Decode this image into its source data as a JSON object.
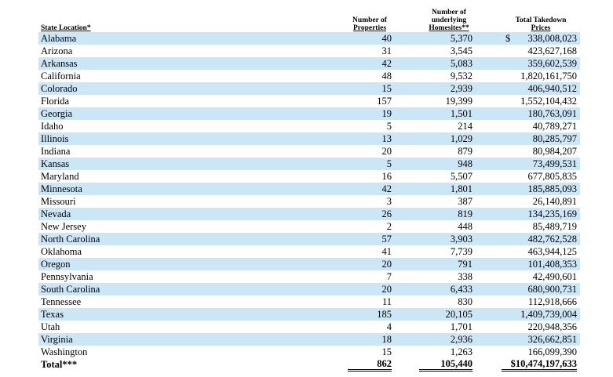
{
  "headers": {
    "state": "State Location*",
    "properties": [
      "Number of",
      "Properties"
    ],
    "homesites": [
      "Number of",
      "underlying",
      "Homesites**"
    ],
    "prices": [
      "Total Takedown",
      "Prices"
    ]
  },
  "currency_symbol": "$",
  "rows": [
    {
      "state": "Alabama",
      "properties": "40",
      "homesites": "5,370",
      "prices": "338,008,023"
    },
    {
      "state": "Arizona",
      "properties": "31",
      "homesites": "3,545",
      "prices": "423,627,168"
    },
    {
      "state": "Arkansas",
      "properties": "42",
      "homesites": "5,083",
      "prices": "359,602,539"
    },
    {
      "state": "California",
      "properties": "48",
      "homesites": "9,532",
      "prices": "1,820,161,750"
    },
    {
      "state": "Colorado",
      "properties": "15",
      "homesites": "2,939",
      "prices": "406,940,512"
    },
    {
      "state": "Florida",
      "properties": "157",
      "homesites": "19,399",
      "prices": "1,552,104,432"
    },
    {
      "state": "Georgia",
      "properties": "19",
      "homesites": "1,501",
      "prices": "180,763,091"
    },
    {
      "state": "Idaho",
      "properties": "5",
      "homesites": "214",
      "prices": "40,789,271"
    },
    {
      "state": "Illinois",
      "properties": "13",
      "homesites": "1,029",
      "prices": "80,285,797"
    },
    {
      "state": "Indiana",
      "properties": "20",
      "homesites": "879",
      "prices": "80,984,207"
    },
    {
      "state": "Kansas",
      "properties": "5",
      "homesites": "948",
      "prices": "73,499,531"
    },
    {
      "state": "Maryland",
      "properties": "16",
      "homesites": "5,507",
      "prices": "677,805,835"
    },
    {
      "state": "Minnesota",
      "properties": "42",
      "homesites": "1,801",
      "prices": "185,885,093"
    },
    {
      "state": "Missouri",
      "properties": "3",
      "homesites": "387",
      "prices": "26,140,891"
    },
    {
      "state": "Nevada",
      "properties": "26",
      "homesites": "819",
      "prices": "134,235,169"
    },
    {
      "state": "New Jersey",
      "properties": "2",
      "homesites": "448",
      "prices": "85,489,719"
    },
    {
      "state": "North Carolina",
      "properties": "57",
      "homesites": "3,903",
      "prices": "482,762,528"
    },
    {
      "state": "Oklahoma",
      "properties": "41",
      "homesites": "7,739",
      "prices": "463,944,125"
    },
    {
      "state": "Oregon",
      "properties": "20",
      "homesites": "791",
      "prices": "101,408,353"
    },
    {
      "state": "Pennsylvania",
      "properties": "7",
      "homesites": "338",
      "prices": "42,490,601"
    },
    {
      "state": "South Carolina",
      "properties": "20",
      "homesites": "6,433",
      "prices": "680,900,731"
    },
    {
      "state": "Tennessee",
      "properties": "11",
      "homesites": "830",
      "prices": "112,918,666"
    },
    {
      "state": "Texas",
      "properties": "185",
      "homesites": "20,105",
      "prices": "1,409,739,004"
    },
    {
      "state": "Utah",
      "properties": "4",
      "homesites": "1,701",
      "prices": "220,948,356"
    },
    {
      "state": "Virginia",
      "properties": "18",
      "homesites": "2,936",
      "prices": "326,662,851"
    },
    {
      "state": "Washington",
      "properties": "15",
      "homesites": "1,263",
      "prices": "166,099,390"
    }
  ],
  "total": {
    "label": "Total***",
    "properties": "862",
    "homesites": "105,440",
    "prices": "$10,474,197,633"
  },
  "colors": {
    "row_shade": "#cde6f7"
  }
}
